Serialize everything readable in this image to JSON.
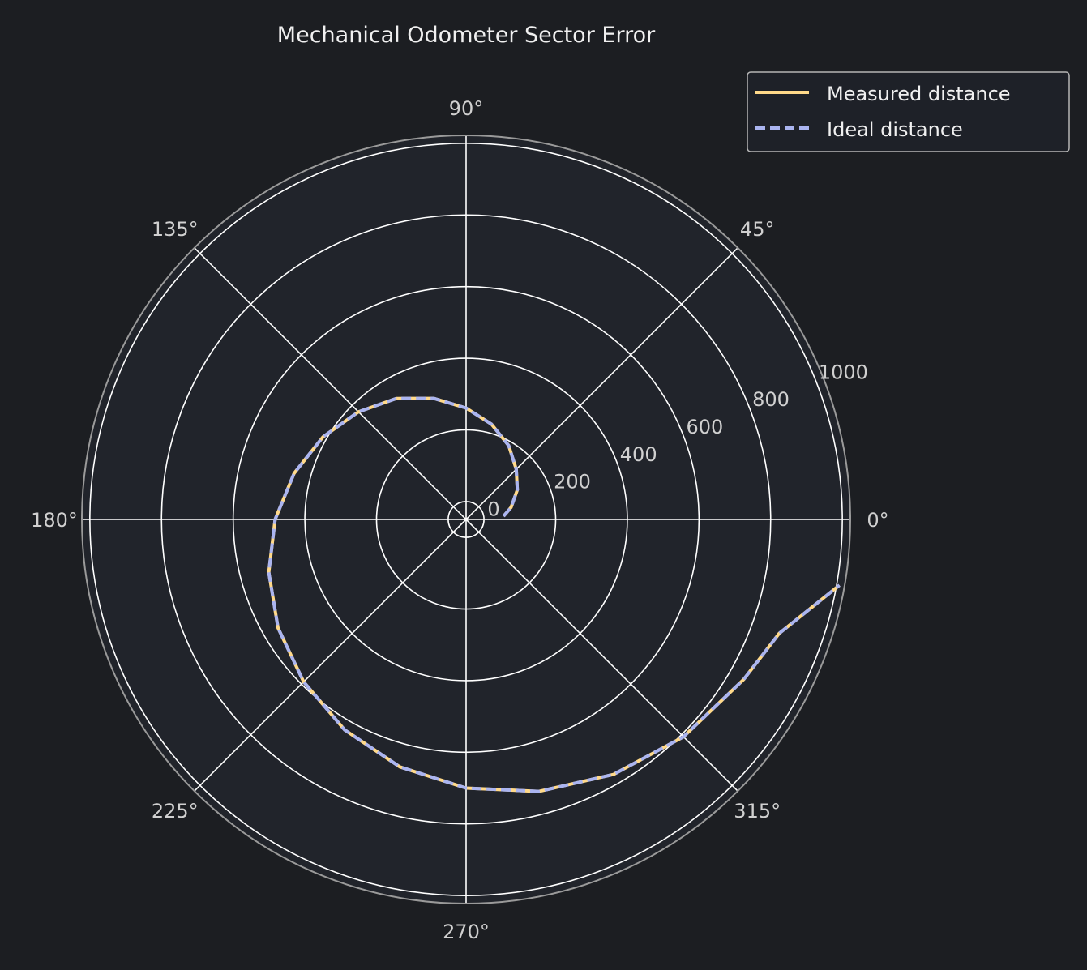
{
  "chart_data": {
    "type": "line",
    "projection": "polar",
    "title": "Mechanical Odometer Sector Error",
    "theta_unit": "degrees",
    "theta_ticks": [
      0,
      45,
      90,
      135,
      180,
      225,
      270,
      315
    ],
    "theta_tick_labels": [
      "0°",
      "45°",
      "90°",
      "135°",
      "180°",
      "225°",
      "270°",
      "315°"
    ],
    "r_ticks": [
      0,
      200,
      400,
      600,
      800,
      1000
    ],
    "r_tick_labels": [
      "0",
      "200",
      "400",
      "600",
      "800",
      "1000"
    ],
    "rlim": [
      -50,
      1020
    ],
    "grid": true,
    "legend_position": "top-right",
    "colors": {
      "background": "#1c1e22",
      "plot_area": "#21242b",
      "grid": "#ffffff",
      "spine": "#9a9a9a",
      "measured": "#ffd98a",
      "ideal": "#aab4f0"
    },
    "series": [
      {
        "name": "Measured distance",
        "style": "solid",
        "theta": [
          5,
          15,
          30,
          45,
          60,
          75,
          90,
          105,
          120,
          135,
          150,
          165,
          180,
          195,
          210,
          225,
          240,
          255,
          270,
          285,
          300,
          315,
          330,
          340,
          350
        ],
        "r": [
          55,
          80,
          115,
          148,
          188,
          225,
          261,
          300,
          340,
          375,
          411,
          447,
          483,
          520,
          556,
          591,
          628,
          665,
          700,
          736,
          772,
          808,
          844,
          880,
          1008
        ]
      },
      {
        "name": "Ideal distance",
        "style": "dashed",
        "theta": [
          5,
          15,
          30,
          45,
          60,
          75,
          90,
          105,
          120,
          135,
          150,
          165,
          180,
          195,
          210,
          225,
          240,
          255,
          270,
          285,
          300,
          315,
          330,
          340,
          350
        ],
        "r": [
          55,
          80,
          115,
          148,
          188,
          225,
          261,
          300,
          340,
          375,
          411,
          447,
          483,
          520,
          556,
          591,
          628,
          665,
          700,
          736,
          772,
          808,
          844,
          880,
          1008
        ]
      }
    ]
  }
}
